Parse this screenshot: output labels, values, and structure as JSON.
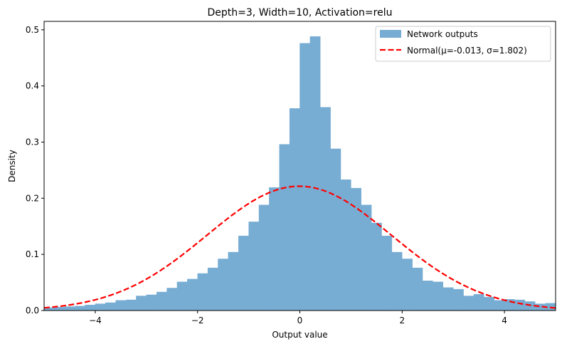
{
  "chart_data": {
    "type": "histogram",
    "title": "Depth=3, Width=10, Activation=relu",
    "xlabel": "Output value",
    "ylabel": "Density",
    "xlim": [
      -5,
      5
    ],
    "ylim": [
      0,
      0.515
    ],
    "xticks": [
      -4,
      -2,
      0,
      2,
      4
    ],
    "xtick_labels": [
      "−4",
      "−2",
      "0",
      "2",
      "4"
    ],
    "yticks": [
      0.0,
      0.1,
      0.2,
      0.3,
      0.4,
      0.5
    ],
    "ytick_labels": [
      "0.0",
      "0.1",
      "0.2",
      "0.3",
      "0.4",
      "0.5"
    ],
    "grid": false,
    "legend_position": "top-right",
    "bin_start": -5,
    "bin_width": 0.2,
    "series": [
      {
        "name": "Network outputs",
        "kind": "bars",
        "color": "#77acd3",
        "values": [
          0.005,
          0.006,
          0.007,
          0.008,
          0.01,
          0.012,
          0.014,
          0.018,
          0.019,
          0.026,
          0.028,
          0.033,
          0.04,
          0.051,
          0.056,
          0.066,
          0.076,
          0.092,
          0.104,
          0.133,
          0.158,
          0.188,
          0.219,
          0.296,
          0.36,
          0.476,
          0.488,
          0.362,
          0.288,
          0.233,
          0.218,
          0.188,
          0.156,
          0.133,
          0.104,
          0.092,
          0.076,
          0.053,
          0.051,
          0.041,
          0.038,
          0.026,
          0.029,
          0.024,
          0.018,
          0.02,
          0.019,
          0.016,
          0.012,
          0.013
        ]
      },
      {
        "name": "Normal(μ=-0.013, σ=1.802)",
        "kind": "normal-curve",
        "color": "#ff0000",
        "mu": -0.013,
        "sigma": 1.802
      }
    ]
  }
}
